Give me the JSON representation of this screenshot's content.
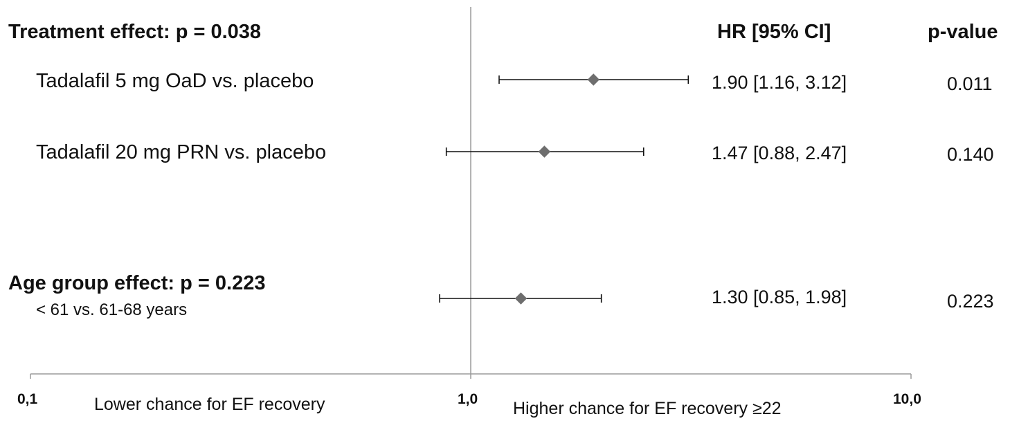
{
  "chart_data": {
    "type": "forest",
    "x_scale": "log",
    "xlim": [
      0.1,
      10.0
    ],
    "x_tick_labels": [
      "0,1",
      "1,0",
      "10,0"
    ],
    "x_tick_values": [
      0.1,
      1.0,
      10.0
    ],
    "reference_line": 1.0,
    "xlabel_left": "Lower chance for EF recovery",
    "xlabel_right": "Higher chance for EF recovery ≥22",
    "column_headers": {
      "hr": "HR [95% CI]",
      "p": "p-value"
    },
    "groups": [
      {
        "title": "Treatment effect: p = 0.038",
        "subtitle": ""
      },
      {
        "title": "Age group effect: p = 0.223",
        "subtitle": "< 61 vs. 61-68 years"
      }
    ],
    "rows": [
      {
        "label": "Tadalafil  5 mg OaD vs. placebo",
        "hr": 1.9,
        "lower": 1.16,
        "upper": 3.12,
        "hr_text": "1.90 [1.16, 3.12]",
        "p_text": "0.011"
      },
      {
        "label": "Tadalafil 20 mg PRN vs. placebo",
        "hr": 1.47,
        "lower": 0.88,
        "upper": 2.47,
        "hr_text": "1.47 [0.88, 2.47]",
        "p_text": "0.140"
      },
      {
        "label": "",
        "hr": 1.3,
        "lower": 0.85,
        "upper": 1.98,
        "hr_text": "1.30 [0.85, 1.98]",
        "p_text": "0.223"
      }
    ],
    "marker_color": "#6e6e6e",
    "line_color": "#111111",
    "reference_line_color": "#9a9a9a"
  }
}
